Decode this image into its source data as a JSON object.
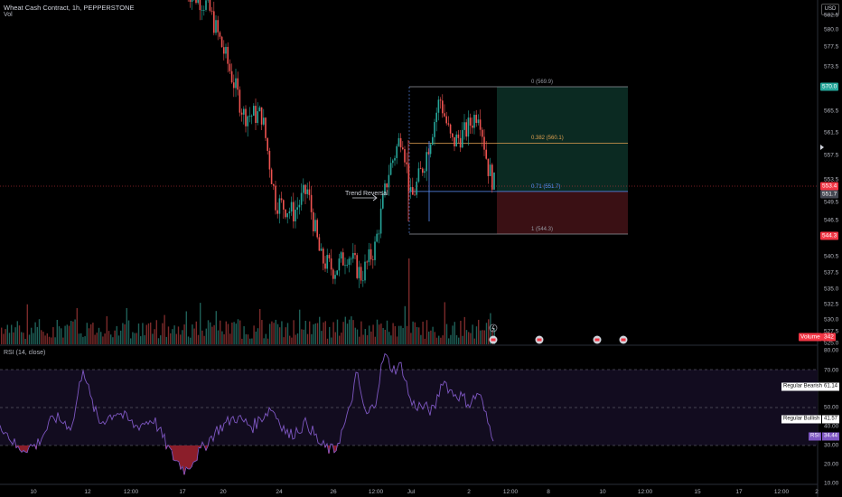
{
  "header": {
    "symbol_line": "Wheat Cash Contract, 1h, PEPPERSTONE",
    "vol_label": "Vol",
    "currency_button": "USD"
  },
  "price_axis_ticks": [
    "582.5",
    "580.0",
    "577.5",
    "573.5",
    "569.5",
    "565.5",
    "561.5",
    "557.5",
    "553.5",
    "549.5",
    "546.5",
    "543.5",
    "540.5",
    "537.5",
    "535.0",
    "532.5",
    "530.0",
    "527.5",
    "525.0"
  ],
  "price_tags": {
    "target": "570.0",
    "last": "553.4",
    "entry": "551.7",
    "stop": "544.3",
    "volume_label": "Volume",
    "volume_value": "342"
  },
  "fib_levels": [
    {
      "label": "0 (569.9)",
      "price": 569.9,
      "color": "#9598a1"
    },
    {
      "label": "0.382 (560.1)",
      "price": 560.1,
      "color": "#e0a050"
    },
    {
      "label": "0.71 (551.7)",
      "price": 551.7,
      "color": "#5b8ff9"
    },
    {
      "label": "1 (544.3)",
      "price": 544.3,
      "color": "#9598a1"
    }
  ],
  "annotation": {
    "text": "Trend Reversal",
    "color": "#5b8ff9"
  },
  "rsi": {
    "title": "RSI (14, close)",
    "axis_ticks": [
      "80.00",
      "70.00",
      "60.00",
      "50.00",
      "40.00",
      "30.00",
      "20.00",
      "10.00"
    ],
    "bearish_label": "Regular Bearish",
    "bearish_value": "61.14",
    "bullish_label": "Regular Bullish",
    "bullish_value": "41.57",
    "rsi_label": "RSI",
    "rsi_value": "34.44",
    "overbought": 70,
    "oversold": 30
  },
  "time_axis": [
    "10",
    "12",
    "12:00",
    "17",
    "20",
    "24",
    "26",
    "12:00",
    "Jul",
    "2",
    "12:00",
    "8",
    "10",
    "12:00",
    "15",
    "17",
    "12:00",
    "2"
  ],
  "colors": {
    "up": "#26a69a",
    "down": "#ef5350",
    "rsi_line": "#7e57c2",
    "profit_zone": "#0b2a22",
    "loss_zone": "#3a1014",
    "accent_green": "#26a69a",
    "accent_red": "#f23645"
  },
  "icons": {
    "event_flag": "earnings-flag-icon",
    "lightning": "lightning-icon",
    "arrow": "right-arrow-icon"
  }
}
